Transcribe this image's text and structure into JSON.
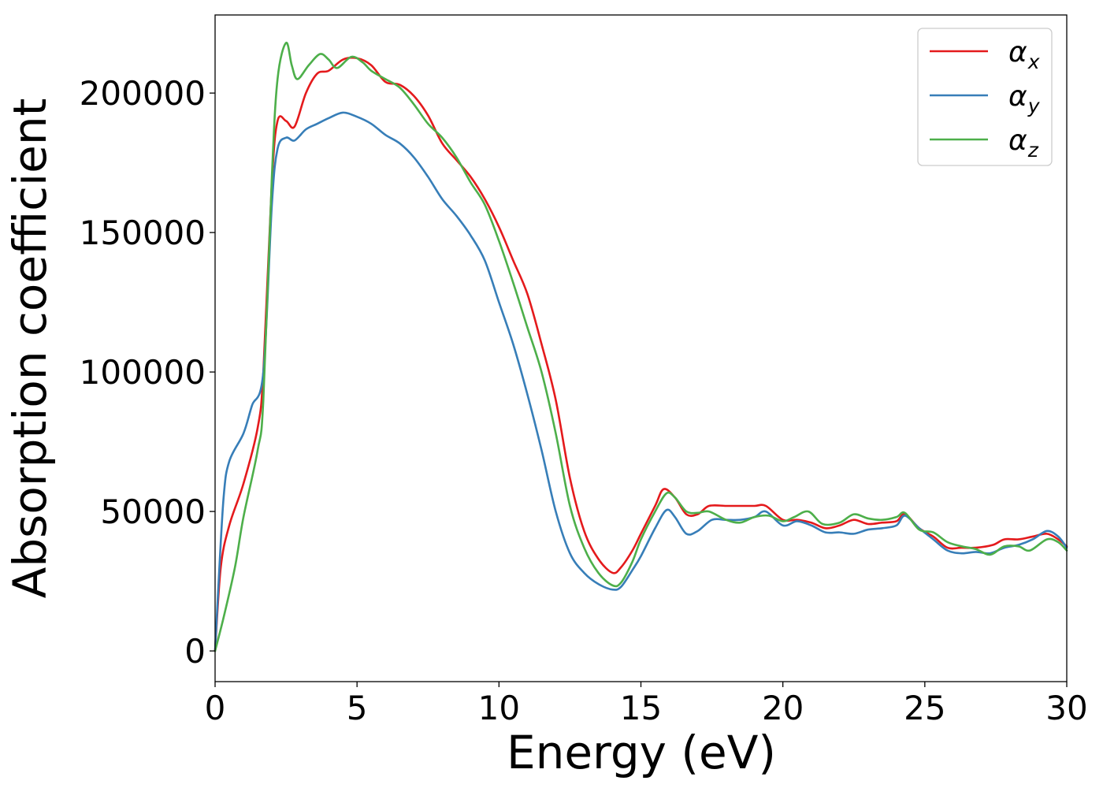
{
  "chart_data": {
    "type": "line",
    "title": "",
    "xlabel": "Energy (eV)",
    "ylabel": "Absorption coefficient",
    "xlim": [
      0,
      30
    ],
    "ylim": [
      -11000,
      228000
    ],
    "grid": false,
    "legend_position": "top-right",
    "x_ticks": [
      {
        "value": 0,
        "label": "0"
      },
      {
        "value": 5,
        "label": "5"
      },
      {
        "value": 10,
        "label": "10"
      },
      {
        "value": 15,
        "label": "15"
      },
      {
        "value": 20,
        "label": "20"
      },
      {
        "value": 25,
        "label": "25"
      },
      {
        "value": 30,
        "label": "30"
      }
    ],
    "y_ticks": [
      {
        "value": 0,
        "label": "0"
      },
      {
        "value": 50000,
        "label": "50000"
      },
      {
        "value": 100000,
        "label": "100000"
      },
      {
        "value": 150000,
        "label": "150000"
      },
      {
        "value": 200000,
        "label": "200000"
      }
    ],
    "series": [
      {
        "name": "αx",
        "symbol": "α",
        "subscript": "x",
        "color": "#e41a1c",
        "points": [
          [
            0,
            0
          ],
          [
            0.2,
            30000
          ],
          [
            0.5,
            45000
          ],
          [
            1,
            60000
          ],
          [
            1.5,
            80000
          ],
          [
            1.7,
            100000
          ],
          [
            2,
            168000
          ],
          [
            2.2,
            190000
          ],
          [
            2.5,
            190000
          ],
          [
            2.8,
            188000
          ],
          [
            3.2,
            200000
          ],
          [
            3.6,
            207000
          ],
          [
            4,
            208000
          ],
          [
            4.5,
            212000
          ],
          [
            5,
            212500
          ],
          [
            5.5,
            210000
          ],
          [
            6,
            204000
          ],
          [
            6.5,
            203000
          ],
          [
            7,
            199000
          ],
          [
            7.5,
            192000
          ],
          [
            8,
            182000
          ],
          [
            8.5,
            176000
          ],
          [
            9,
            170000
          ],
          [
            9.5,
            162000
          ],
          [
            10,
            152000
          ],
          [
            10.5,
            140000
          ],
          [
            11,
            128000
          ],
          [
            11.5,
            110000
          ],
          [
            12,
            90000
          ],
          [
            12.5,
            62000
          ],
          [
            13,
            43000
          ],
          [
            13.5,
            33000
          ],
          [
            14,
            28000
          ],
          [
            14.3,
            30000
          ],
          [
            14.7,
            36000
          ],
          [
            15,
            42000
          ],
          [
            15.5,
            52000
          ],
          [
            15.8,
            58000
          ],
          [
            16.2,
            55000
          ],
          [
            16.6,
            49000
          ],
          [
            17,
            49000
          ],
          [
            17.4,
            52000
          ],
          [
            18,
            52000
          ],
          [
            18.5,
            52000
          ],
          [
            19,
            52000
          ],
          [
            19.4,
            52000
          ],
          [
            20,
            47000
          ],
          [
            20.5,
            47000
          ],
          [
            21,
            46000
          ],
          [
            21.5,
            44000
          ],
          [
            22,
            45000
          ],
          [
            22.5,
            47000
          ],
          [
            23,
            45500
          ],
          [
            23.5,
            46000
          ],
          [
            24,
            46500
          ],
          [
            24.3,
            49000
          ],
          [
            24.8,
            44000
          ],
          [
            25.3,
            41000
          ],
          [
            25.8,
            37000
          ],
          [
            26.3,
            37000
          ],
          [
            26.8,
            37000
          ],
          [
            27.4,
            38000
          ],
          [
            27.8,
            40000
          ],
          [
            28.3,
            40000
          ],
          [
            28.8,
            41000
          ],
          [
            29.3,
            42000
          ],
          [
            29.7,
            40000
          ],
          [
            30,
            37500
          ]
        ]
      },
      {
        "name": "αy",
        "symbol": "α",
        "subscript": "y",
        "color": "#377eb8",
        "points": [
          [
            0,
            0
          ],
          [
            0.1,
            20000
          ],
          [
            0.3,
            55000
          ],
          [
            0.5,
            68000
          ],
          [
            1,
            78000
          ],
          [
            1.3,
            88000
          ],
          [
            1.7,
            100000
          ],
          [
            2,
            160000
          ],
          [
            2.2,
            180000
          ],
          [
            2.5,
            184000
          ],
          [
            2.8,
            183000
          ],
          [
            3.2,
            187000
          ],
          [
            3.6,
            189000
          ],
          [
            4,
            191000
          ],
          [
            4.5,
            193000
          ],
          [
            5,
            191500
          ],
          [
            5.5,
            189000
          ],
          [
            6,
            185000
          ],
          [
            6.5,
            182000
          ],
          [
            7,
            177000
          ],
          [
            7.5,
            170000
          ],
          [
            8,
            162000
          ],
          [
            8.5,
            156000
          ],
          [
            9,
            149000
          ],
          [
            9.5,
            140000
          ],
          [
            10,
            125000
          ],
          [
            10.5,
            110000
          ],
          [
            11,
            92000
          ],
          [
            11.5,
            72000
          ],
          [
            12,
            50000
          ],
          [
            12.5,
            35000
          ],
          [
            13,
            28000
          ],
          [
            13.5,
            24000
          ],
          [
            14,
            22000
          ],
          [
            14.3,
            23000
          ],
          [
            14.7,
            29000
          ],
          [
            15,
            34000
          ],
          [
            15.5,
            44000
          ],
          [
            15.9,
            50500
          ],
          [
            16.2,
            48000
          ],
          [
            16.6,
            42000
          ],
          [
            17,
            43000
          ],
          [
            17.5,
            47000
          ],
          [
            18,
            47000
          ],
          [
            18.5,
            47000
          ],
          [
            19,
            48000
          ],
          [
            19.4,
            50000
          ],
          [
            20,
            45000
          ],
          [
            20.5,
            46500
          ],
          [
            21,
            45000
          ],
          [
            21.5,
            42500
          ],
          [
            22,
            42500
          ],
          [
            22.5,
            42000
          ],
          [
            23,
            43500
          ],
          [
            23.5,
            44000
          ],
          [
            24,
            45000
          ],
          [
            24.3,
            48500
          ],
          [
            24.8,
            44000
          ],
          [
            25.3,
            40000
          ],
          [
            25.8,
            36000
          ],
          [
            26.3,
            35000
          ],
          [
            26.8,
            35500
          ],
          [
            27.3,
            35000
          ],
          [
            27.8,
            37000
          ],
          [
            28.3,
            38000
          ],
          [
            28.8,
            40000
          ],
          [
            29.3,
            43000
          ],
          [
            29.7,
            41000
          ],
          [
            30,
            37000
          ]
        ]
      },
      {
        "name": "αz",
        "symbol": "α",
        "subscript": "z",
        "color": "#4daf4a",
        "points": [
          [
            0,
            0
          ],
          [
            0.3,
            12000
          ],
          [
            0.7,
            30000
          ],
          [
            1,
            48000
          ],
          [
            1.5,
            72000
          ],
          [
            1.7,
            90000
          ],
          [
            2,
            170000
          ],
          [
            2.2,
            205000
          ],
          [
            2.5,
            218000
          ],
          [
            2.7,
            210000
          ],
          [
            2.9,
            205000
          ],
          [
            3.3,
            210000
          ],
          [
            3.7,
            214000
          ],
          [
            4,
            212000
          ],
          [
            4.3,
            209000
          ],
          [
            4.8,
            213000
          ],
          [
            5.2,
            211000
          ],
          [
            5.5,
            208000
          ],
          [
            6,
            205000
          ],
          [
            6.5,
            202000
          ],
          [
            7,
            196000
          ],
          [
            7.5,
            189000
          ],
          [
            8,
            184000
          ],
          [
            8.5,
            177000
          ],
          [
            9,
            168000
          ],
          [
            9.5,
            160000
          ],
          [
            10,
            147000
          ],
          [
            10.5,
            132000
          ],
          [
            11,
            116000
          ],
          [
            11.5,
            100000
          ],
          [
            12,
            78000
          ],
          [
            12.5,
            52000
          ],
          [
            13,
            37000
          ],
          [
            13.5,
            28000
          ],
          [
            14,
            23500
          ],
          [
            14.3,
            24500
          ],
          [
            14.7,
            32000
          ],
          [
            15,
            40000
          ],
          [
            15.5,
            50000
          ],
          [
            15.9,
            56500
          ],
          [
            16.2,
            55000
          ],
          [
            16.6,
            50000
          ],
          [
            17,
            49500
          ],
          [
            17.4,
            50000
          ],
          [
            18,
            47000
          ],
          [
            18.5,
            46000
          ],
          [
            19,
            48000
          ],
          [
            19.5,
            48500
          ],
          [
            20,
            46500
          ],
          [
            20.4,
            48000
          ],
          [
            20.9,
            50000
          ],
          [
            21.4,
            45500
          ],
          [
            22,
            46000
          ],
          [
            22.5,
            49000
          ],
          [
            23,
            47500
          ],
          [
            23.5,
            47000
          ],
          [
            24,
            48000
          ],
          [
            24.3,
            49500
          ],
          [
            24.8,
            43500
          ],
          [
            25.3,
            42500
          ],
          [
            25.8,
            39000
          ],
          [
            26.3,
            37500
          ],
          [
            26.8,
            36500
          ],
          [
            27.3,
            34500
          ],
          [
            27.8,
            37500
          ],
          [
            28.3,
            37500
          ],
          [
            28.7,
            36000
          ],
          [
            29.3,
            40000
          ],
          [
            29.7,
            39000
          ],
          [
            30,
            36000
          ]
        ]
      }
    ]
  }
}
